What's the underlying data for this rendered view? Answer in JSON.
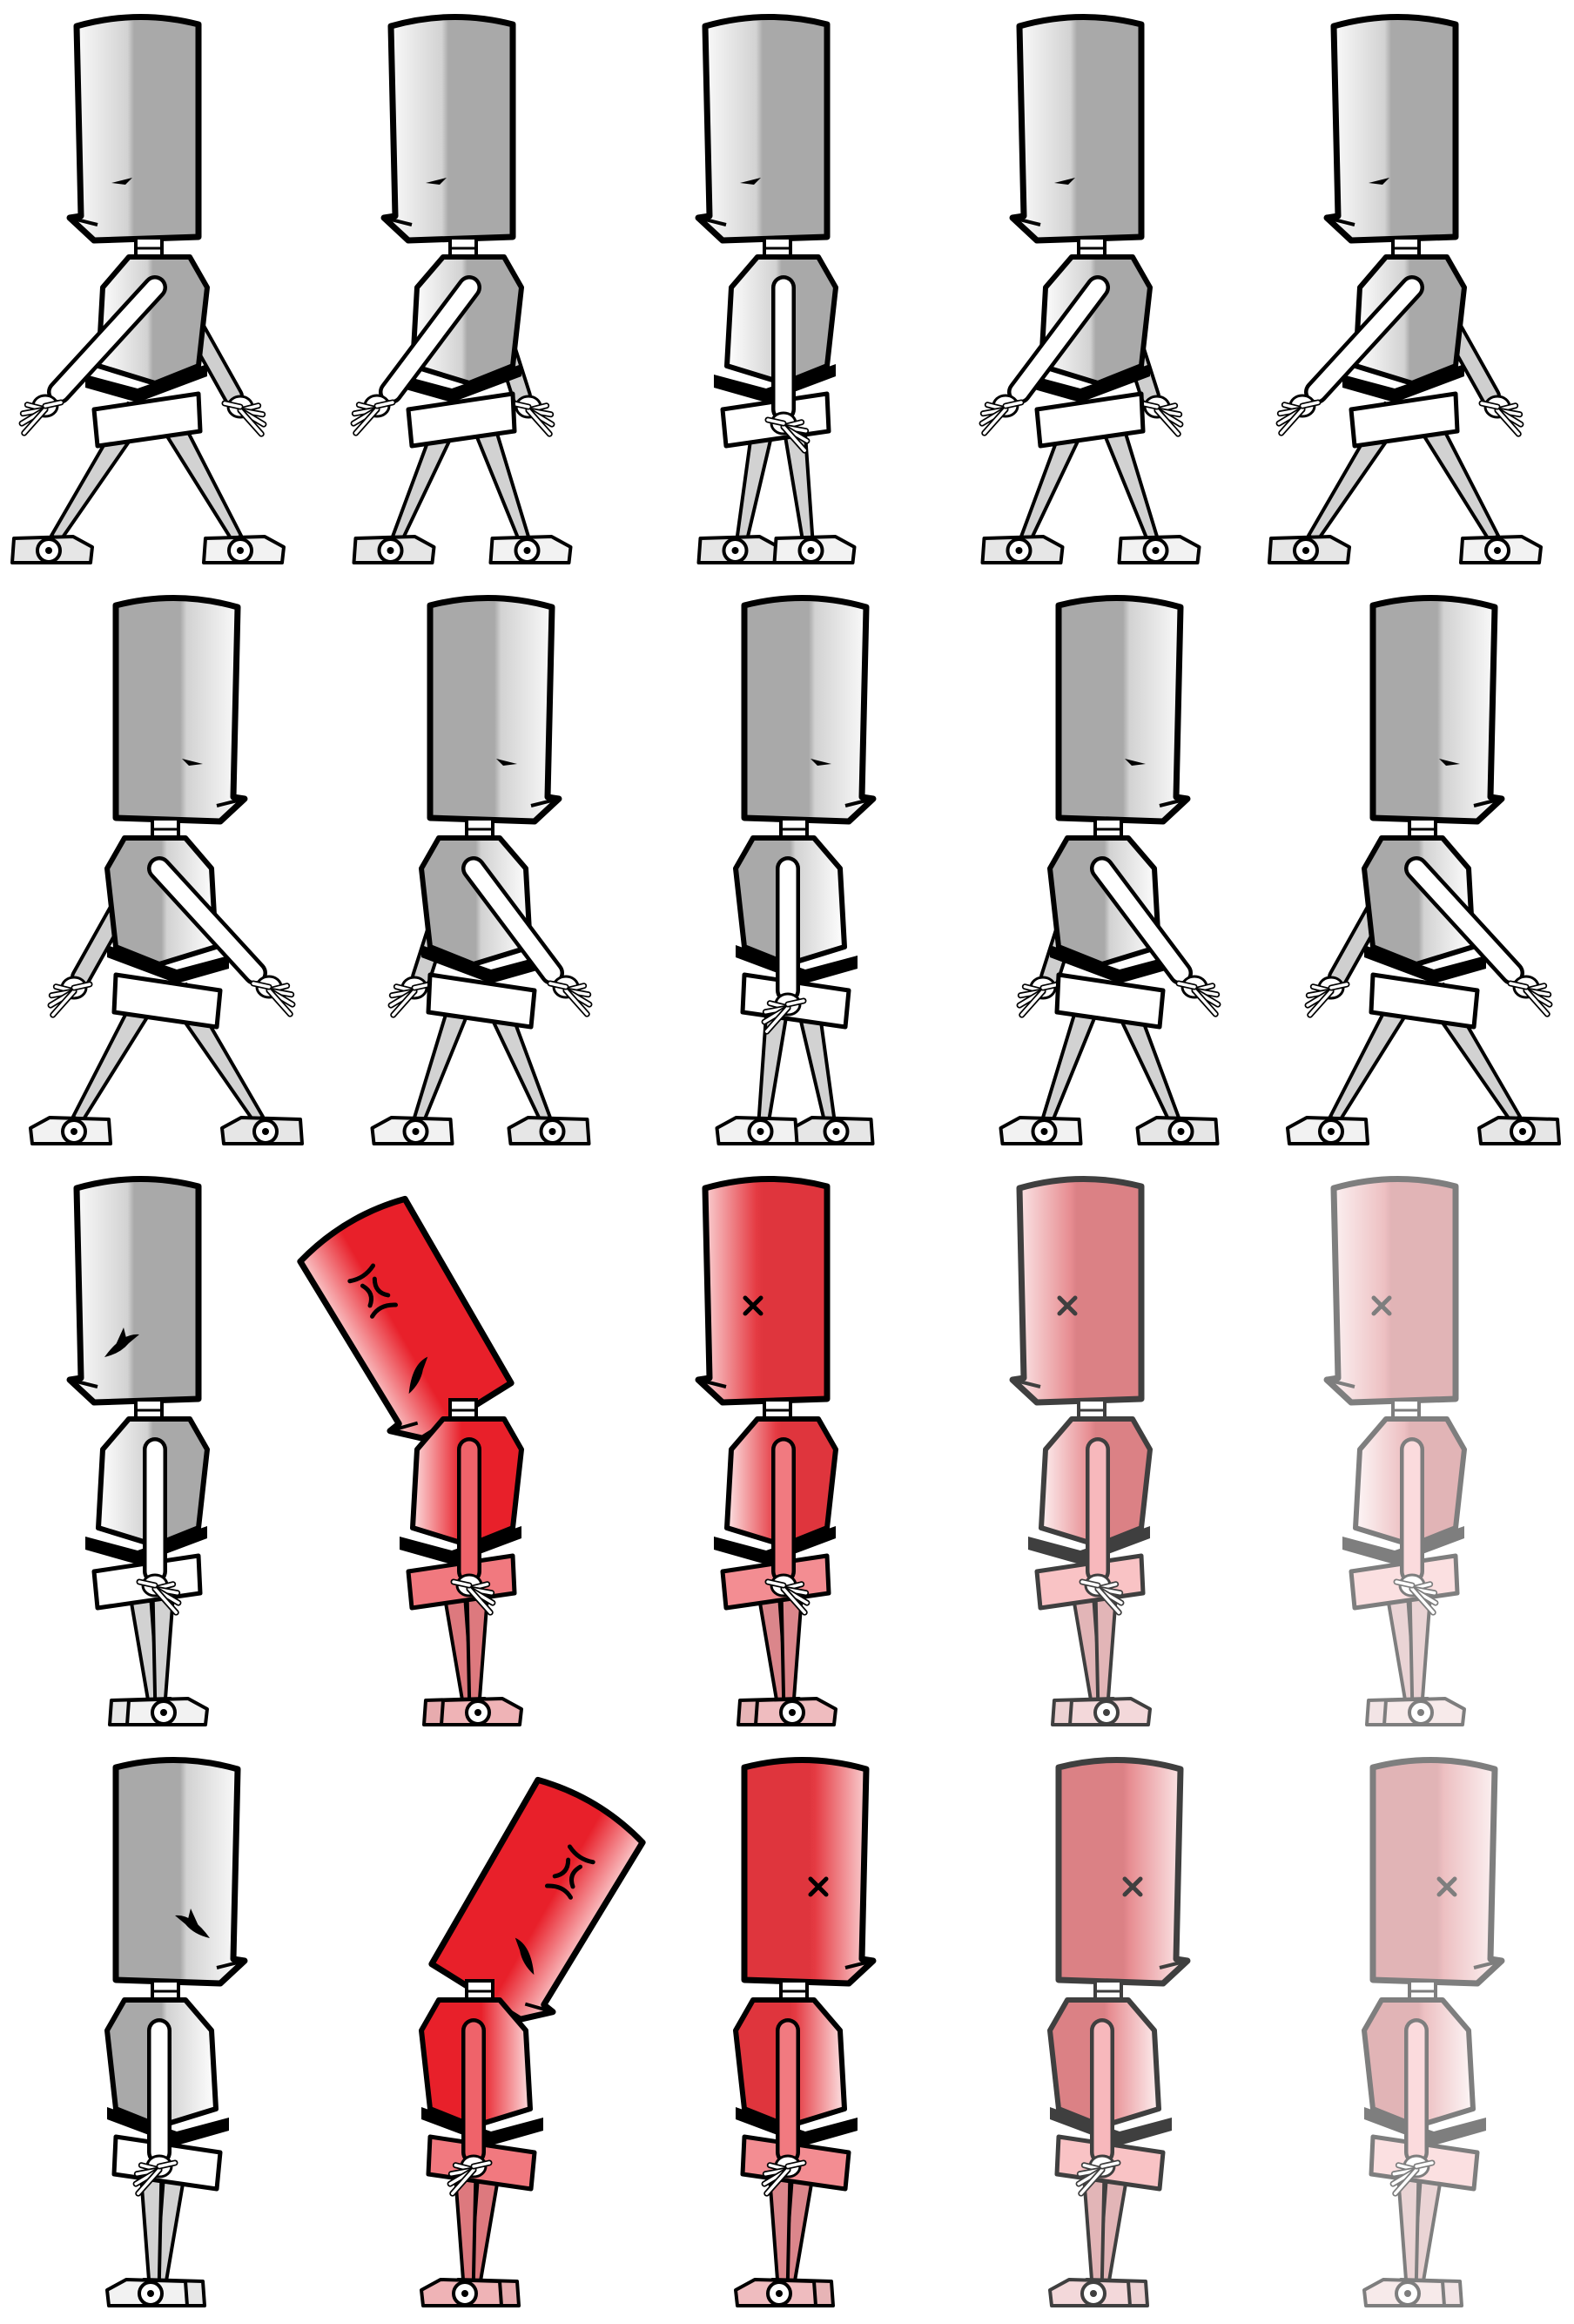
{
  "sheet": {
    "name": "robot-character-sprite-sheet",
    "columns": 5,
    "rows": 4,
    "colors": {
      "outline": "#000000",
      "metal_light": "#ffffff",
      "metal_mid": "#d2d2d2",
      "metal_dark": "#a9a9a9",
      "hurt_red": "#e8202a"
    },
    "rows_data": [
      {
        "name": "walk-right",
        "facing": "right",
        "frames": [
          {
            "pose": "stride-wide",
            "stride": 1.0,
            "arms": "swing"
          },
          {
            "pose": "stride-mid",
            "stride": 0.55,
            "arms": "swing-small"
          },
          {
            "pose": "pass",
            "stride": 0.05,
            "arms": "down"
          },
          {
            "pose": "stride-mid",
            "stride": 0.55,
            "arms": "swing-small"
          },
          {
            "pose": "stride-wide",
            "stride": 1.0,
            "arms": "swing"
          }
        ]
      },
      {
        "name": "walk-left",
        "facing": "left",
        "frames": [
          {
            "pose": "stride-wide",
            "stride": 1.0,
            "arms": "swing"
          },
          {
            "pose": "stride-mid",
            "stride": 0.55,
            "arms": "swing-small"
          },
          {
            "pose": "pass",
            "stride": 0.05,
            "arms": "down"
          },
          {
            "pose": "stride-mid",
            "stride": 0.55,
            "arms": "swing-small"
          },
          {
            "pose": "stride-wide",
            "stride": 1.0,
            "arms": "swing"
          }
        ]
      },
      {
        "name": "hurt-and-die-right",
        "facing": "right",
        "frames": [
          {
            "pose": "idle-worried",
            "expression": "worried",
            "tint": 0,
            "fade": 1.0
          },
          {
            "pose": "hurt-tilt",
            "expression": "angry",
            "tint": 1,
            "fade": 1.0
          },
          {
            "pose": "dead",
            "expression": "dead-x",
            "tint": 0.85,
            "fade": 1.0
          },
          {
            "pose": "dead",
            "expression": "dead-x",
            "tint": 0.6,
            "fade": 0.75
          },
          {
            "pose": "dead",
            "expression": "dead-x",
            "tint": 0.45,
            "fade": 0.5
          }
        ]
      },
      {
        "name": "hurt-and-die-left",
        "facing": "left",
        "frames": [
          {
            "pose": "idle-worried",
            "expression": "worried",
            "tint": 0,
            "fade": 1.0
          },
          {
            "pose": "hurt-tilt",
            "expression": "angry",
            "tint": 1,
            "fade": 1.0
          },
          {
            "pose": "dead",
            "expression": "dead-x",
            "tint": 0.85,
            "fade": 1.0
          },
          {
            "pose": "dead",
            "expression": "dead-x",
            "tint": 0.6,
            "fade": 0.75
          },
          {
            "pose": "dead",
            "expression": "dead-x",
            "tint": 0.45,
            "fade": 0.5
          }
        ]
      }
    ]
  }
}
